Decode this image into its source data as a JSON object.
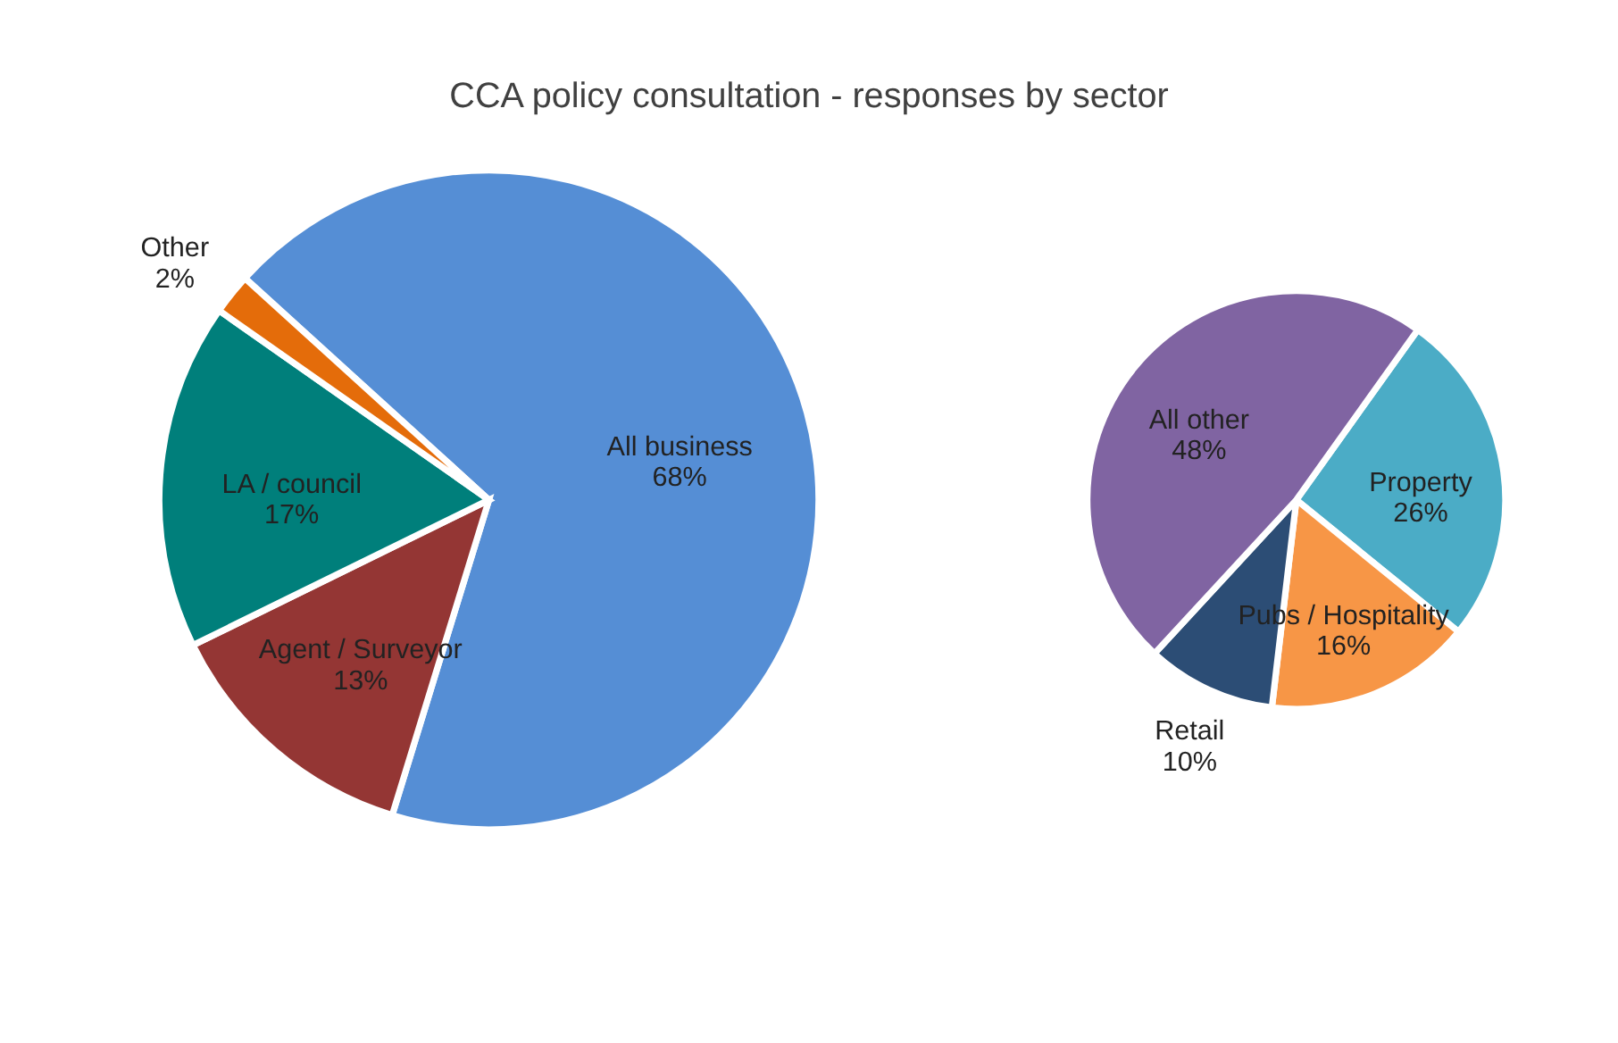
{
  "chart_data": [
    {
      "type": "pie",
      "title": "CCA policy consultation - responses by sector",
      "categories": [
        "All business",
        "Agent / Surveyor",
        "LA / council",
        "Other"
      ],
      "values": [
        68,
        13,
        17,
        2
      ],
      "value_labels": [
        "68%",
        "13%",
        "17%",
        "2%"
      ],
      "colors": [
        "#558ed5",
        "#943634",
        "#007f7b",
        "#e46c0a"
      ],
      "legend": false
    },
    {
      "type": "pie",
      "categories": [
        "Property",
        "Pubs / Hospitality",
        "Retail",
        "All other"
      ],
      "values": [
        26,
        16,
        10,
        48
      ],
      "value_labels": [
        "26%",
        "16%",
        "10%",
        "48%"
      ],
      "colors": [
        "#4bacc6",
        "#f79646",
        "#2c4d75",
        "#8064a2"
      ],
      "legend": false
    }
  ]
}
